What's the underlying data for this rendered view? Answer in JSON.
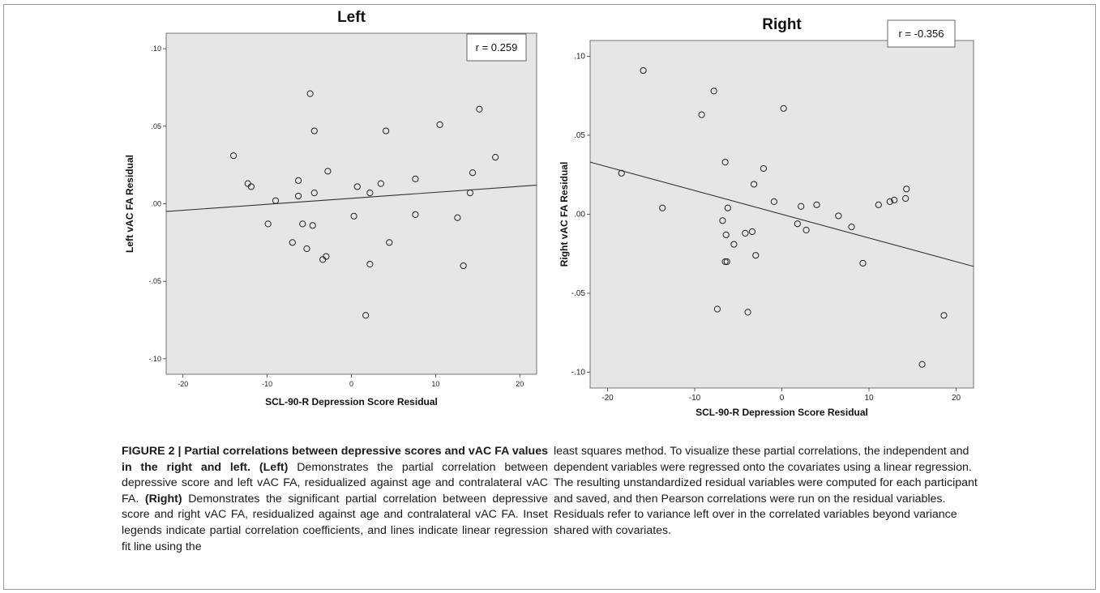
{
  "chart_data": [
    {
      "type": "scatter",
      "title": "Left",
      "xlabel": "SCL-90-R Depression Score Residual",
      "ylabel": "Left vAC FA Residual",
      "xlim": [
        -22,
        22
      ],
      "ylim": [
        -0.11,
        0.11
      ],
      "xticks": [
        -20,
        -10,
        0,
        10,
        20
      ],
      "yticks": [
        0.1,
        0.05,
        0.0,
        -0.05,
        -0.1
      ],
      "xtick_labels": [
        "-20",
        "-10",
        "0",
        "10",
        "20"
      ],
      "ytick_labels": [
        ".10",
        ".05",
        ".00",
        "-.05",
        "-.10"
      ],
      "grid": false,
      "legend_text": "r = 0.259",
      "legend_position": "top-right",
      "fit_line": {
        "x": [
          -22,
          22
        ],
        "y": [
          -0.005,
          0.012
        ]
      },
      "points": [
        {
          "x": -14,
          "y": 0.031
        },
        {
          "x": -12.3,
          "y": 0.013
        },
        {
          "x": -11.9,
          "y": 0.011
        },
        {
          "x": -9,
          "y": 0.002
        },
        {
          "x": -9.9,
          "y": -0.013
        },
        {
          "x": -6.3,
          "y": 0.015
        },
        {
          "x": -6.3,
          "y": 0.005
        },
        {
          "x": -7,
          "y": -0.025
        },
        {
          "x": -5.8,
          "y": -0.013
        },
        {
          "x": -5.3,
          "y": -0.029
        },
        {
          "x": -4.9,
          "y": 0.071
        },
        {
          "x": -4.4,
          "y": 0.047
        },
        {
          "x": -4.4,
          "y": 0.007
        },
        {
          "x": -4.6,
          "y": -0.014
        },
        {
          "x": -3.4,
          "y": -0.036
        },
        {
          "x": -3,
          "y": -0.034
        },
        {
          "x": -2.8,
          "y": 0.021
        },
        {
          "x": 0.3,
          "y": -0.008
        },
        {
          "x": 0.7,
          "y": 0.011
        },
        {
          "x": 1.7,
          "y": -0.072
        },
        {
          "x": 2.2,
          "y": 0.007
        },
        {
          "x": 2.2,
          "y": -0.039
        },
        {
          "x": 3.5,
          "y": 0.013
        },
        {
          "x": 4.1,
          "y": 0.047
        },
        {
          "x": 4.5,
          "y": -0.025
        },
        {
          "x": 7.6,
          "y": 0.016
        },
        {
          "x": 7.6,
          "y": -0.007
        },
        {
          "x": 10.5,
          "y": 0.051
        },
        {
          "x": 12.6,
          "y": -0.009
        },
        {
          "x": 13.3,
          "y": -0.04
        },
        {
          "x": 14.1,
          "y": 0.007
        },
        {
          "x": 14.4,
          "y": 0.02
        },
        {
          "x": 15.2,
          "y": 0.061
        },
        {
          "x": 17.1,
          "y": 0.03
        }
      ]
    },
    {
      "type": "scatter",
      "title": "Right",
      "xlabel": "SCL-90-R Depression Score Residual",
      "ylabel": "Right vAC FA Residual",
      "xlim": [
        -22,
        22
      ],
      "ylim": [
        -0.11,
        0.11
      ],
      "xticks": [
        -20,
        -10,
        0,
        10,
        20
      ],
      "yticks": [
        0.1,
        0.05,
        0.0,
        -0.05,
        -0.1
      ],
      "xtick_labels": [
        "-20",
        "-10",
        "0",
        "10",
        "20"
      ],
      "ytick_labels": [
        ".10",
        ".05",
        ".00",
        "-.05",
        "-.10"
      ],
      "grid": false,
      "legend_text": "r = -0.356",
      "legend_position": "top-right",
      "fit_line": {
        "x": [
          -22,
          22
        ],
        "y": [
          0.033,
          -0.033
        ]
      },
      "points": [
        {
          "x": -15.9,
          "y": 0.091
        },
        {
          "x": -18.4,
          "y": 0.026
        },
        {
          "x": -13.7,
          "y": 0.004
        },
        {
          "x": -9.2,
          "y": 0.063
        },
        {
          "x": -7.8,
          "y": 0.078
        },
        {
          "x": -6.5,
          "y": 0.033
        },
        {
          "x": -6.8,
          "y": -0.004
        },
        {
          "x": -6.2,
          "y": 0.004
        },
        {
          "x": -6.4,
          "y": -0.013
        },
        {
          "x": -6.5,
          "y": -0.03
        },
        {
          "x": -6.3,
          "y": -0.03
        },
        {
          "x": -7.4,
          "y": -0.06
        },
        {
          "x": -5.5,
          "y": -0.019
        },
        {
          "x": -4.2,
          "y": -0.012
        },
        {
          "x": -3.4,
          "y": -0.011
        },
        {
          "x": -3.2,
          "y": 0.019
        },
        {
          "x": -3,
          "y": -0.026
        },
        {
          "x": -3.9,
          "y": -0.062
        },
        {
          "x": -2.1,
          "y": 0.029
        },
        {
          "x": -0.9,
          "y": 0.008
        },
        {
          "x": 0.2,
          "y": 0.067
        },
        {
          "x": 1.8,
          "y": -0.006
        },
        {
          "x": 2.2,
          "y": 0.005
        },
        {
          "x": 2.8,
          "y": -0.01
        },
        {
          "x": 4,
          "y": 0.006
        },
        {
          "x": 6.5,
          "y": -0.001
        },
        {
          "x": 8,
          "y": -0.008
        },
        {
          "x": 9.3,
          "y": -0.031
        },
        {
          "x": 11.1,
          "y": 0.006
        },
        {
          "x": 12.4,
          "y": 0.008
        },
        {
          "x": 12.9,
          "y": 0.009
        },
        {
          "x": 14.2,
          "y": 0.01
        },
        {
          "x": 14.3,
          "y": 0.016
        },
        {
          "x": 16.1,
          "y": -0.095
        },
        {
          "x": 18.6,
          "y": -0.064
        }
      ]
    }
  ],
  "caption": {
    "left": {
      "figure_label": "FIGURE 2 | Partial correlations between depressive scores and vAC FA values in the right and left.",
      "left_tag": "(Left)",
      "left_text": "Demonstrates the partial correlation between depressive score and left vAC FA, residualized against age and contralateral vAC FA.",
      "right_tag": "(Right)",
      "right_text": "Demonstrates the significant partial correlation between depressive score and right vAC FA, residualized against age and contralateral vAC FA. Inset legends indicate partial correlation coefficients, and lines indicate linear regression fit line using the"
    },
    "right_text": "least squares method. To visualize these partial correlations, the independent and dependent variables were regressed onto the covariates using a linear regression. The resulting unstandardized residual variables were computed for each participant and saved, and then Pearson correlations were run on the residual variables. Residuals refer to variance left over in the correlated variables beyond variance shared with covariates."
  },
  "colors": {
    "plot_bg": "#e6e6e6",
    "marker": "#222222",
    "fit_line": "#333333",
    "frame": "#9a9a9a"
  }
}
